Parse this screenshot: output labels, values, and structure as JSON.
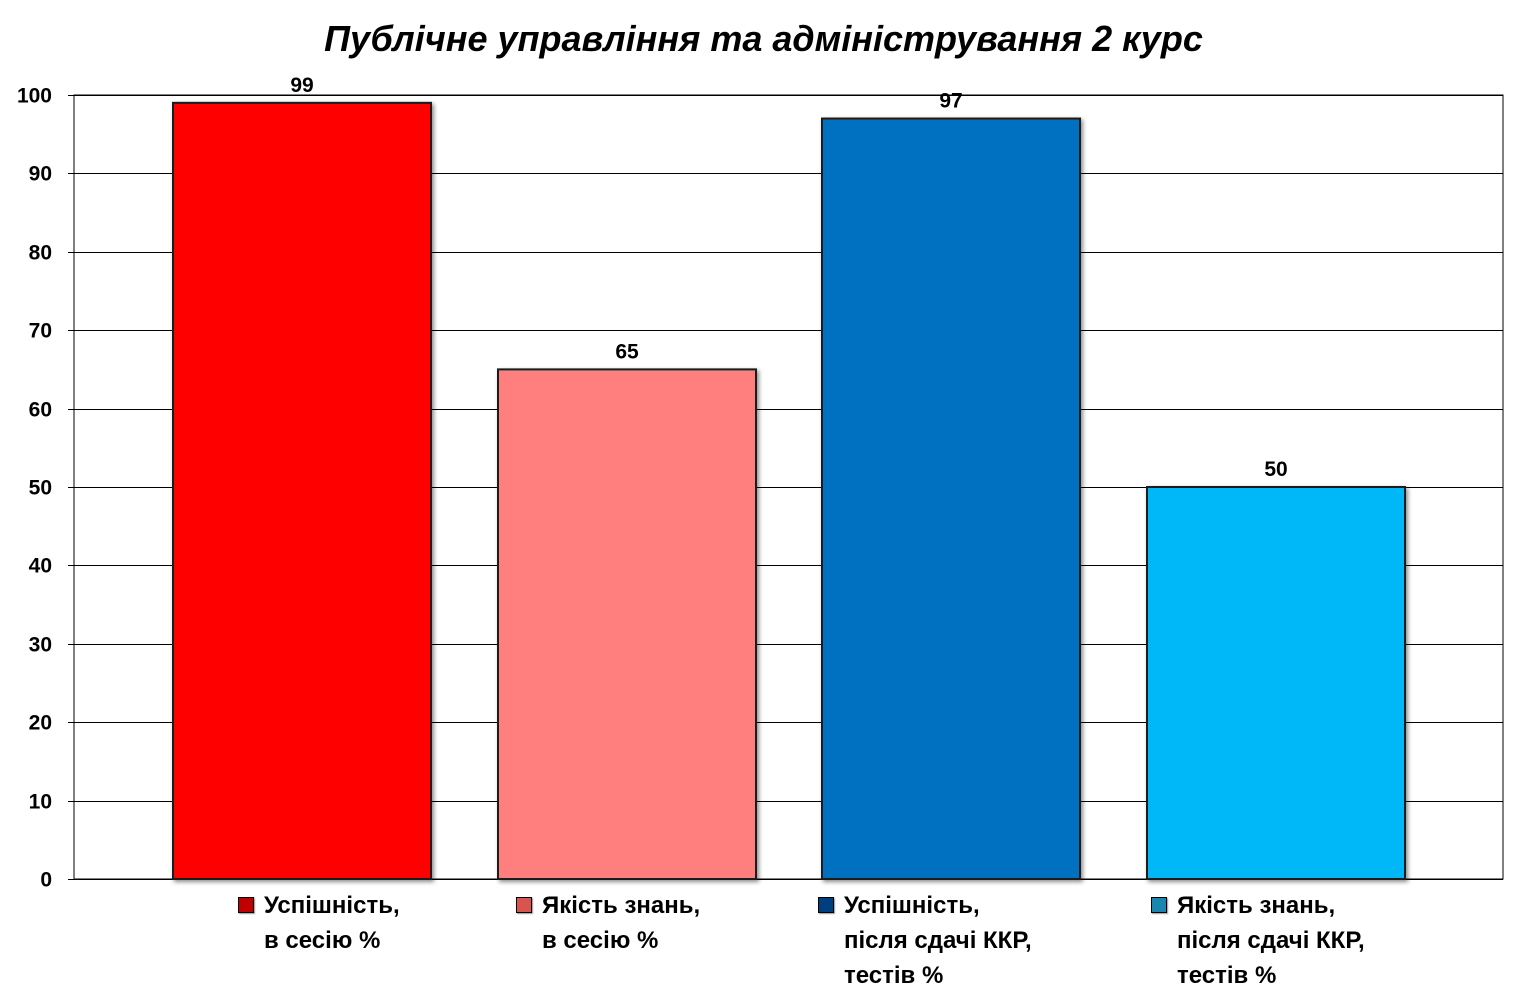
{
  "chart_data": {
    "type": "bar",
    "title": "Публічне управління та адміністрування 2 курс",
    "xlabel": "",
    "ylabel": "",
    "ylim": [
      0,
      100
    ],
    "yticks": [
      0,
      10,
      20,
      30,
      40,
      50,
      60,
      70,
      80,
      90,
      100
    ],
    "grid": true,
    "legend_position": "bottom",
    "categories": [
      "Успішність,\nв сесію %",
      "Якість знань,\nв сесію %",
      "Успішність,\nпісля сдачі ККР,\nтестів %",
      "Якість знань,\nпісля сдачі ККР,\nтестів %"
    ],
    "values": [
      99,
      65,
      97,
      50
    ],
    "data_labels": [
      "99",
      "65",
      "97",
      "50"
    ],
    "colors": [
      "#ff0000",
      "#ff7f7f",
      "#0070c0",
      "#00b8f8"
    ],
    "legend_swatch_colors": [
      "#c00000",
      "#d9534f",
      "#003f7f",
      "#1a86b0"
    ],
    "gridline_color": "#000000"
  }
}
